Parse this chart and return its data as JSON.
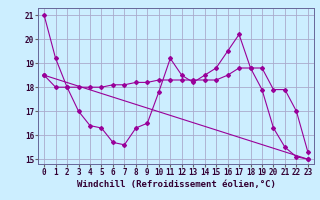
{
  "xlabel": "Windchill (Refroidissement éolien,°C)",
  "bg_color": "#cceeff",
  "grid_color": "#aaaacc",
  "line_color": "#990099",
  "xlim": [
    -0.5,
    23.5
  ],
  "ylim": [
    14.8,
    21.3
  ],
  "yticks": [
    15,
    16,
    17,
    18,
    19,
    20,
    21
  ],
  "xticks": [
    0,
    1,
    2,
    3,
    4,
    5,
    6,
    7,
    8,
    9,
    10,
    11,
    12,
    13,
    14,
    15,
    16,
    17,
    18,
    19,
    20,
    21,
    22,
    23
  ],
  "series1_x": [
    0,
    1,
    2,
    3,
    4,
    5,
    6,
    7,
    8,
    9,
    10,
    11,
    12,
    13,
    14,
    15,
    16,
    17,
    18,
    19,
    20,
    21,
    22,
    23
  ],
  "series1_y": [
    21.0,
    19.2,
    18.0,
    17.0,
    16.4,
    16.3,
    15.7,
    15.6,
    16.3,
    16.5,
    17.8,
    19.2,
    18.5,
    18.2,
    18.5,
    18.8,
    19.5,
    20.2,
    18.8,
    17.9,
    16.3,
    15.5,
    15.1,
    15.0
  ],
  "series2_x": [
    0,
    1,
    2,
    3,
    4,
    5,
    6,
    7,
    8,
    9,
    10,
    11,
    12,
    13,
    14,
    15,
    16,
    17,
    18,
    19,
    20,
    21,
    22,
    23
  ],
  "series2_y": [
    18.5,
    18.0,
    18.0,
    18.0,
    18.0,
    18.0,
    18.1,
    18.1,
    18.2,
    18.2,
    18.3,
    18.3,
    18.3,
    18.3,
    18.3,
    18.3,
    18.5,
    18.8,
    18.8,
    18.8,
    17.9,
    17.9,
    17.0,
    15.3
  ],
  "series3_x": [
    0,
    23
  ],
  "series3_y": [
    18.5,
    15.0
  ],
  "xlabel_fontsize": 6.5,
  "tick_fontsize": 5.5
}
